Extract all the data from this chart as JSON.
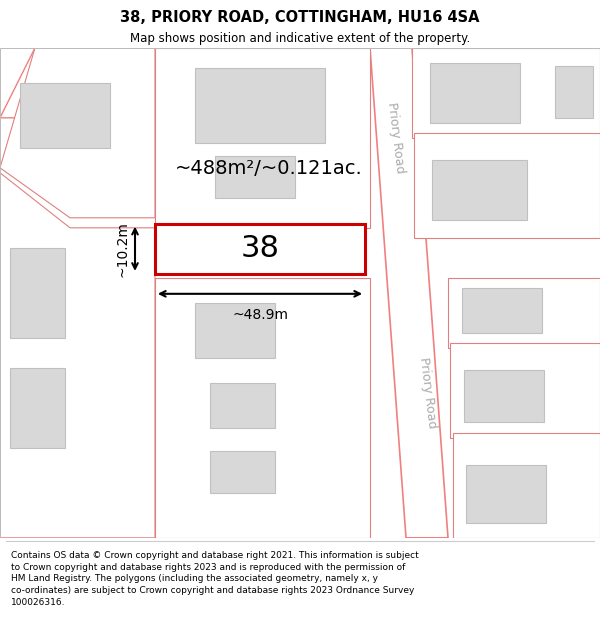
{
  "title": "38, PRIORY ROAD, COTTINGHAM, HU16 4SA",
  "subtitle": "Map shows position and indicative extent of the property.",
  "footer": "Contains OS data © Crown copyright and database right 2021. This information is subject\nto Crown copyright and database rights 2023 and is reproduced with the permission of\nHM Land Registry. The polygons (including the associated geometry, namely x, y\nco-ordinates) are subject to Crown copyright and database rights 2023 Ordnance Survey\n100026316.",
  "road_color": "#f08080",
  "road_fill": "#ffffff",
  "building_fill": "#d8d8d8",
  "building_edge": "#c0c0c0",
  "plot_edge": "#e08080",
  "highlight_fill": "#ffffff",
  "highlight_edge": "#cc0000",
  "area_text": "~488m²/~0.121ac.",
  "width_text": "~48.9m",
  "height_text": "~10.2m",
  "number_text": "38",
  "road_label": "Priory Road",
  "map_bg": "#ffffff"
}
